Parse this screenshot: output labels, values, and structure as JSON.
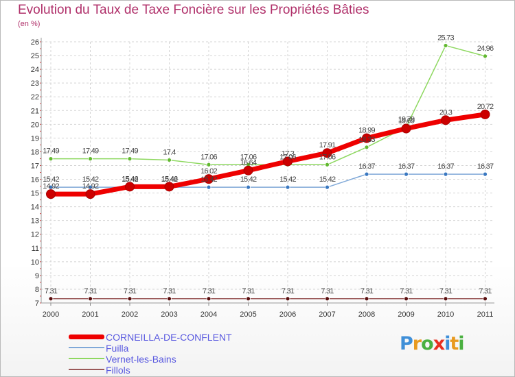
{
  "header": {
    "title": "Evolution du Taux de Taxe Foncière sur les Propriétés Bâties",
    "subtitle": "(en %)"
  },
  "chart_data": {
    "type": "line",
    "title": "Evolution du Taux de Taxe Foncière sur les Propriétés Bâties",
    "ylabel": "(en %)",
    "xlabel": "",
    "categories": [
      "2000",
      "2001",
      "2002",
      "2003",
      "2004",
      "2005",
      "2006",
      "2007",
      "2008",
      "2009",
      "2010",
      "2011"
    ],
    "ylim": [
      7,
      26
    ],
    "yticks": [
      7,
      8,
      9,
      10,
      11,
      12,
      13,
      14,
      15,
      16,
      17,
      18,
      19,
      20,
      21,
      22,
      23,
      24,
      25,
      26
    ],
    "grid": true,
    "legend_position": "bottom-left",
    "series": [
      {
        "name": "CORNEILLA-DE-CONFLENT",
        "color": "#ee0000",
        "marker": "#cc0000",
        "values": [
          14.92,
          14.92,
          15.46,
          15.46,
          16.02,
          16.64,
          17.3,
          17.91,
          18.99,
          19.69,
          20.3,
          20.72
        ],
        "labels": [
          "14.92",
          "14.92",
          "15.46",
          "15.46",
          "16.02",
          "16.64",
          "17.3",
          "17.91",
          "18.99",
          "19.69",
          "20.3",
          "20.72"
        ]
      },
      {
        "name": "Fuilla",
        "color": "#7fa8d8",
        "marker": "#3a78c0",
        "values": [
          15.42,
          15.42,
          15.42,
          15.42,
          15.42,
          15.42,
          15.42,
          15.42,
          16.37,
          16.37,
          16.37,
          16.37
        ],
        "labels": [
          "15.42",
          "15.42",
          "15.42",
          "15.42",
          "15.42",
          "15.42",
          "15.42",
          "15.42",
          "16.37",
          "16.37",
          "16.37",
          "16.37"
        ]
      },
      {
        "name": "Vernet-les-Bains",
        "color": "#8ed860",
        "marker": "#62b830",
        "values": [
          17.49,
          17.49,
          17.49,
          17.4,
          17.06,
          17.06,
          17.06,
          17.06,
          18.33,
          19.79,
          25.73,
          24.96
        ],
        "labels": [
          "17.49",
          "17.49",
          "17.49",
          "17.4",
          "17.06",
          "17.06",
          "17.06",
          "17.06",
          "18.33",
          "19.79",
          "25.73",
          "24.96"
        ]
      },
      {
        "name": "Fillols",
        "color": "#9a5858",
        "marker": "#5a1010",
        "values": [
          7.31,
          7.31,
          7.31,
          7.31,
          7.31,
          7.31,
          7.31,
          7.31,
          7.31,
          7.31,
          7.31,
          7.31
        ],
        "labels": [
          "7.31",
          "7.31",
          "7.31",
          "7.31",
          "7.31",
          "7.31",
          "7.31",
          "7.31",
          "7.31",
          "7.31",
          "7.31",
          "7.31"
        ]
      }
    ]
  },
  "legend": {
    "items": [
      {
        "label": "CORNEILLA-DE-CONFLENT",
        "color": "#ee0000",
        "thickness": 7
      },
      {
        "label": "Fuilla",
        "color": "#7fa8d8",
        "thickness": 2
      },
      {
        "label": "Vernet-les-Bains",
        "color": "#8ed860",
        "thickness": 2
      },
      {
        "label": "Fillols",
        "color": "#9a5858",
        "thickness": 2
      }
    ]
  },
  "logo": {
    "letters": [
      {
        "ch": "P",
        "color": "#3f8fd8"
      },
      {
        "ch": "r",
        "color": "#e89a20"
      },
      {
        "ch": "o",
        "color": "#4ab040"
      },
      {
        "ch": "x",
        "color": "#e83020"
      },
      {
        "ch": "i",
        "color": "#3f8fd8"
      },
      {
        "ch": "t",
        "color": "#e89a20"
      },
      {
        "ch": "i",
        "color": "#4ab040"
      }
    ]
  }
}
